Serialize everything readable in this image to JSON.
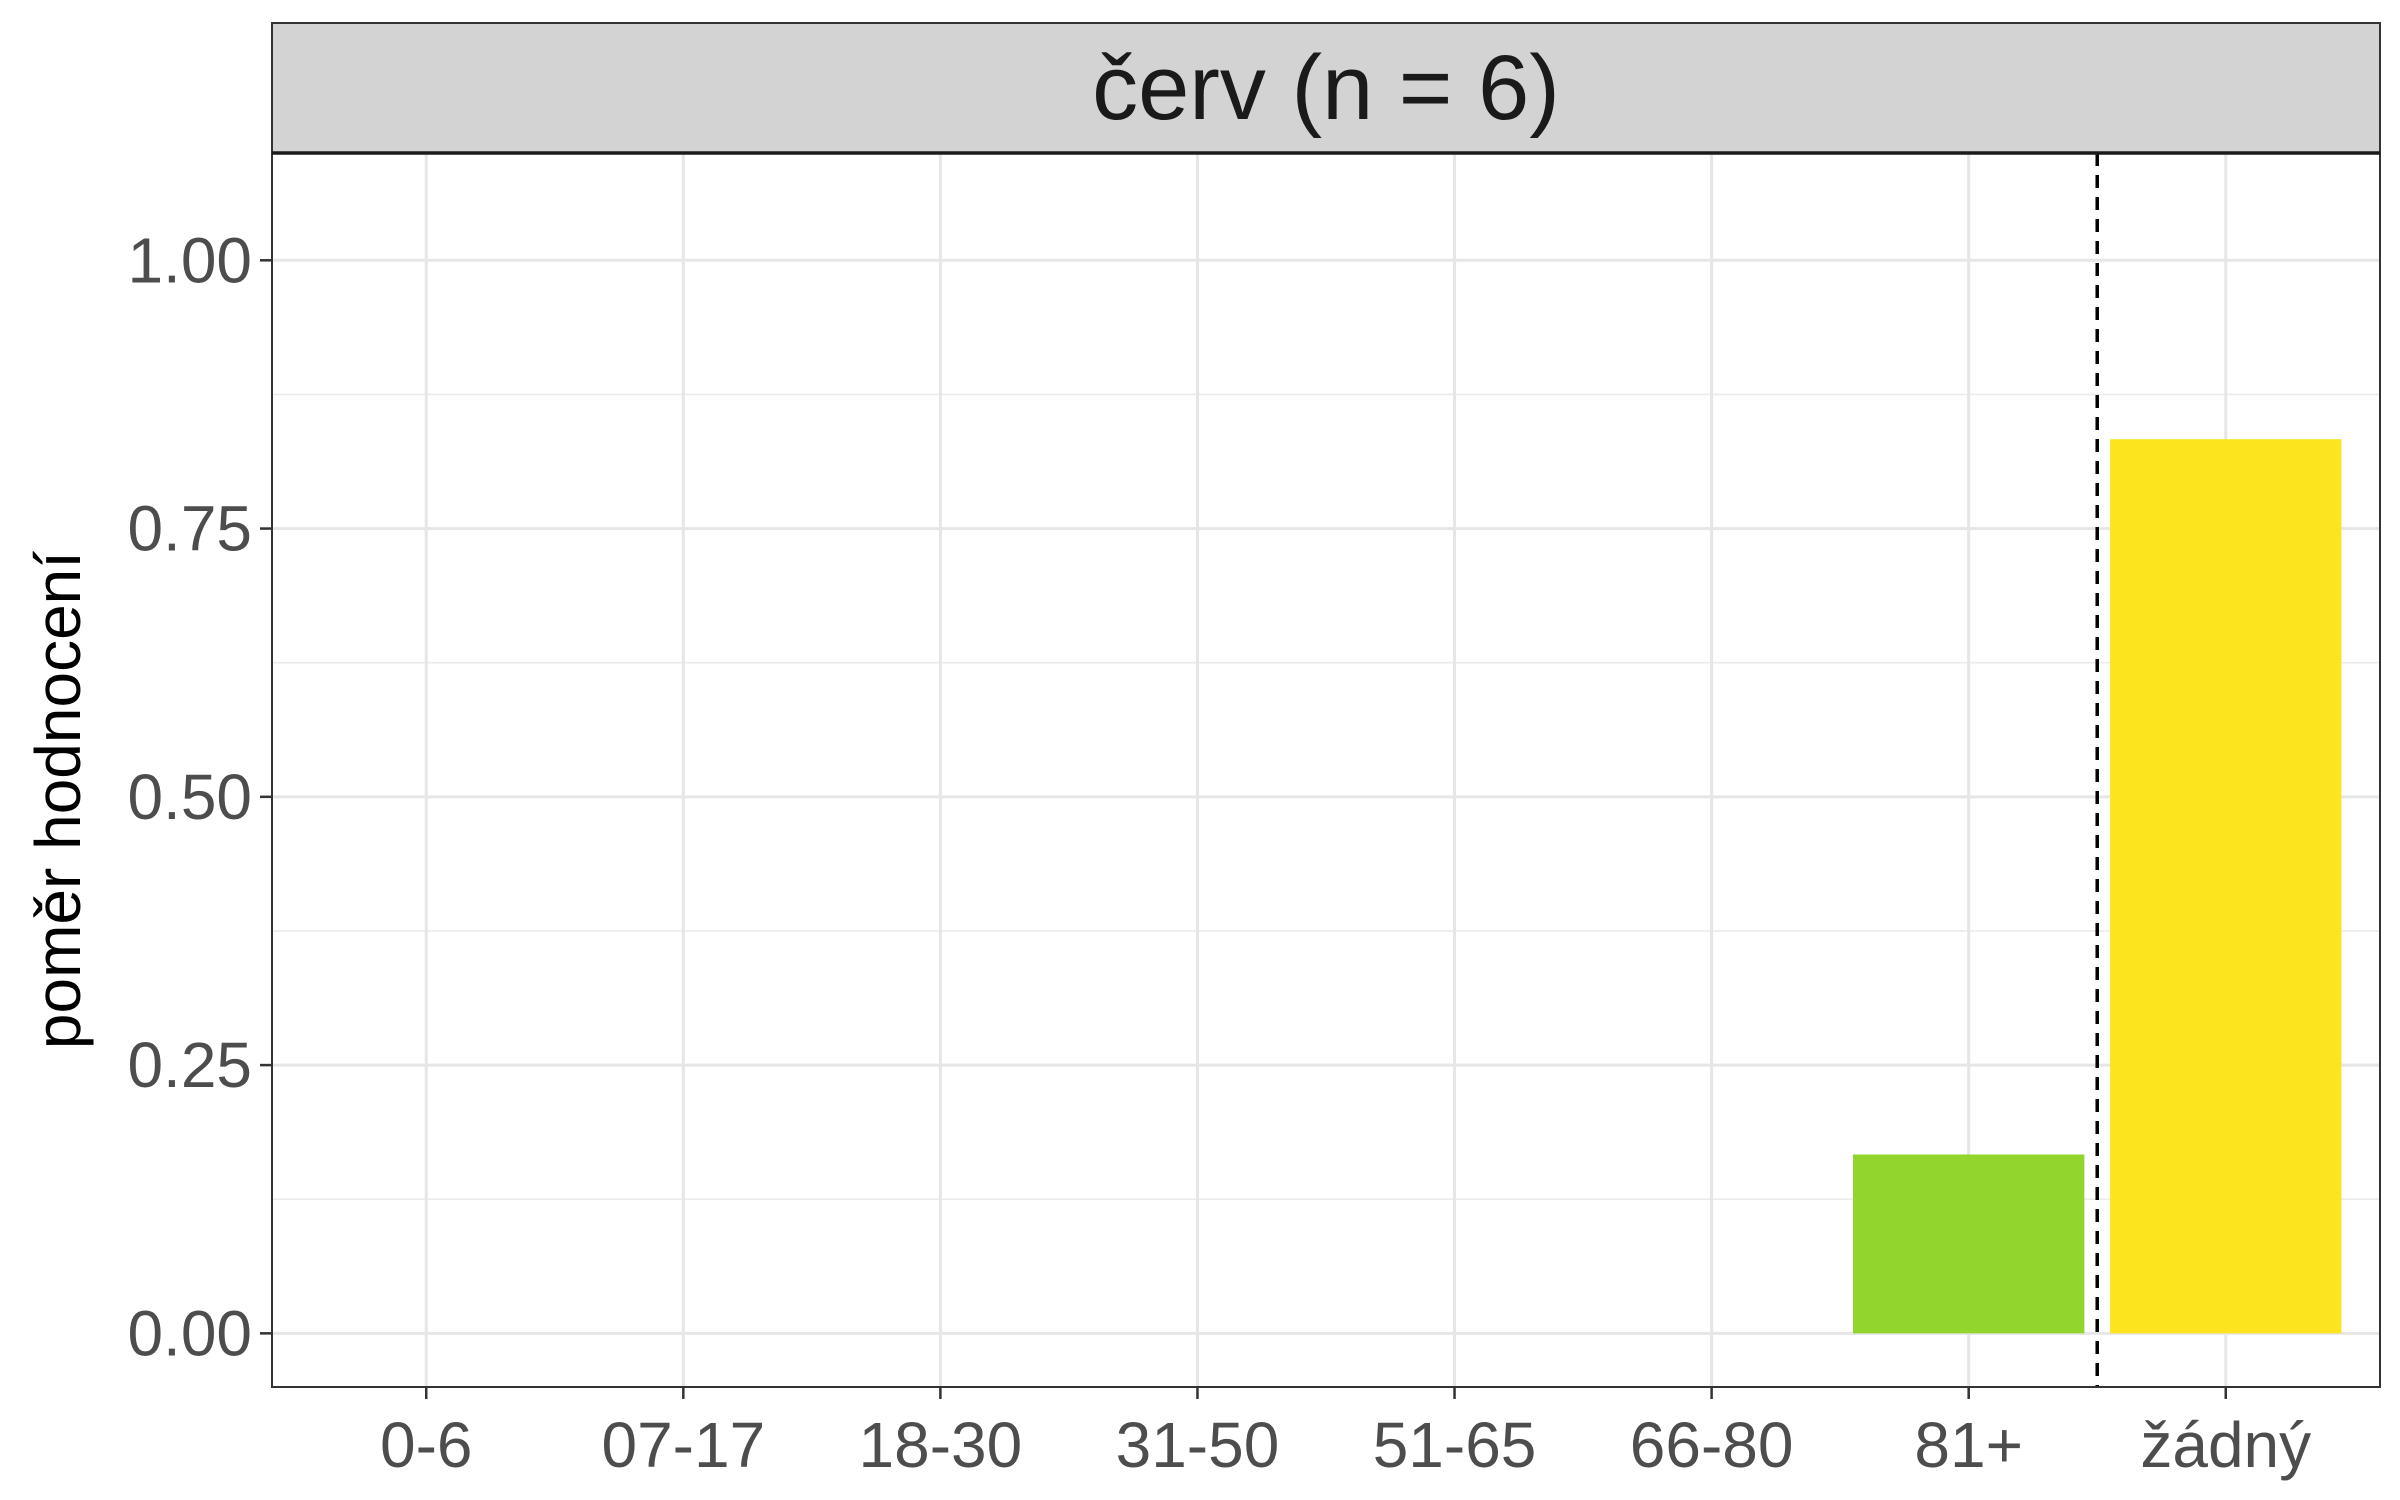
{
  "chart_data": {
    "type": "bar",
    "title": "červ (n = 6)",
    "xlabel": "",
    "ylabel": "poměr hodnocení",
    "categories": [
      "0-6",
      "07-17",
      "18-30",
      "31-50",
      "51-65",
      "66-80",
      "81+",
      "žádný"
    ],
    "values": [
      0,
      0,
      0,
      0,
      0,
      0,
      0.1667,
      0.8333
    ],
    "colors": [
      "#92d62d",
      "#92d62d",
      "#92d62d",
      "#92d62d",
      "#92d62d",
      "#92d62d",
      "#92d62d",
      "#fce51e"
    ],
    "ylim": [
      -0.05,
      1.1
    ],
    "yticks": [
      0,
      0.25,
      0.5,
      0.75,
      1
    ],
    "ytick_labels": [
      "0.00",
      "0.25",
      "0.50",
      "0.75",
      "1.00"
    ],
    "grid": true,
    "dashed_separator": "between 81+ and žádný",
    "strip_color": "#d3d3d3"
  }
}
